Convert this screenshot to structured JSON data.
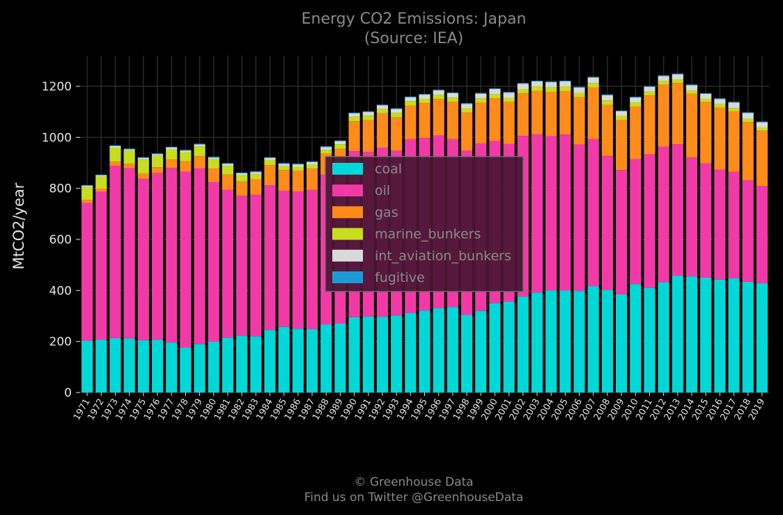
{
  "chart_data": {
    "type": "bar",
    "stacked": true,
    "title": "Energy CO2 Emissions: Japan",
    "subtitle": "(Source: IEA)",
    "xlabel": "",
    "ylabel": "MtCO2/year",
    "ylim": [
      0,
      1320
    ],
    "yticks": [
      0,
      200,
      400,
      600,
      800,
      1000,
      1200
    ],
    "grid": true,
    "legend_position": "center",
    "categories": [
      "1971",
      "1972",
      "1973",
      "1974",
      "1975",
      "1976",
      "1977",
      "1978",
      "1979",
      "1980",
      "1981",
      "1982",
      "1983",
      "1984",
      "1985",
      "1986",
      "1987",
      "1988",
      "1989",
      "1990",
      "1991",
      "1992",
      "1993",
      "1994",
      "1995",
      "1996",
      "1997",
      "1998",
      "1999",
      "2000",
      "2001",
      "2002",
      "2003",
      "2004",
      "2005",
      "2006",
      "2007",
      "2008",
      "2009",
      "2010",
      "2011",
      "2012",
      "2013",
      "2014",
      "2015",
      "2016",
      "2017",
      "2018",
      "2019"
    ],
    "series": [
      {
        "name": "coal",
        "color": "#00d8d8",
        "values": [
          203,
          207,
          213,
          212,
          205,
          207,
          196,
          176,
          190,
          200,
          215,
          222,
          220,
          245,
          257,
          250,
          248,
          266,
          270,
          295,
          298,
          297,
          302,
          311,
          321,
          330,
          335,
          304,
          320,
          350,
          356,
          376,
          392,
          400,
          400,
          398,
          417,
          402,
          385,
          425,
          410,
          432,
          458,
          455,
          450,
          442,
          448,
          434,
          428
        ]
      },
      {
        "name": "oil",
        "color": "#f23aa7",
        "values": [
          540,
          580,
          676,
          667,
          632,
          653,
          684,
          690,
          688,
          625,
          580,
          550,
          556,
          567,
          534,
          538,
          546,
          588,
          598,
          651,
          645,
          663,
          646,
          682,
          677,
          677,
          658,
          644,
          656,
          636,
          618,
          630,
          620,
          605,
          611,
          574,
          576,
          525,
          487,
          490,
          524,
          532,
          515,
          466,
          448,
          432,
          417,
          398,
          382
        ]
      },
      {
        "name": "gas",
        "color": "#ff8c1a",
        "values": [
          12,
          12,
          16,
          18,
          21,
          23,
          33,
          40,
          49,
          53,
          59,
          55,
          60,
          79,
          81,
          82,
          84,
          82,
          88,
          117,
          124,
          134,
          130,
          132,
          136,
          143,
          146,
          149,
          160,
          167,
          165,
          166,
          170,
          173,
          170,
          185,
          202,
          200,
          196,
          206,
          230,
          243,
          240,
          250,
          240,
          243,
          237,
          228,
          216
        ]
      },
      {
        "name": "marine_bunkers",
        "color": "#c7dd1e",
        "values": [
          50,
          47,
          55,
          50,
          55,
          45,
          40,
          35,
          38,
          36,
          35,
          25,
          20,
          20,
          15,
          15,
          15,
          15,
          17,
          18,
          18,
          17,
          18,
          17,
          17,
          17,
          17,
          17,
          17,
          16,
          16,
          17,
          17,
          17,
          17,
          17,
          18,
          18,
          16,
          16,
          15,
          14,
          14,
          14,
          13,
          13,
          13,
          13,
          12
        ]
      },
      {
        "name": "int_aviation_bunkers",
        "color": "#d9d9d9",
        "values": [
          5,
          5,
          6,
          6,
          6,
          6,
          7,
          7,
          7,
          7,
          7,
          7,
          8,
          8,
          9,
          9,
          10,
          11,
          12,
          13,
          14,
          14,
          15,
          15,
          16,
          17,
          17,
          17,
          18,
          20,
          20,
          21,
          20,
          21,
          21,
          21,
          21,
          20,
          18,
          19,
          19,
          19,
          20,
          19,
          19,
          20,
          21,
          22,
          21
        ]
      },
      {
        "name": "fugitive",
        "color": "#1e9bd7",
        "values": [
          3,
          3,
          3,
          3,
          3,
          3,
          3,
          3,
          3,
          3,
          3,
          3,
          3,
          3,
          3,
          3,
          3,
          3,
          3,
          3,
          3,
          3,
          3,
          3,
          3,
          3,
          3,
          3,
          3,
          3,
          3,
          3,
          3,
          3,
          3,
          3,
          3,
          3,
          3,
          3,
          3,
          3,
          3,
          3,
          3,
          3,
          3,
          3,
          3
        ]
      }
    ]
  },
  "footer": {
    "line1": "© Greenhouse Data",
    "line2": "Find us on Twitter @GreenhouseData"
  },
  "colors": {
    "background": "#000000",
    "grid": "#2a2a2a",
    "axis_text": "#e6e6e6",
    "title_text": "#8a8a8a",
    "legend_background": "#4b1535",
    "legend_border": "#6e6e6e"
  }
}
